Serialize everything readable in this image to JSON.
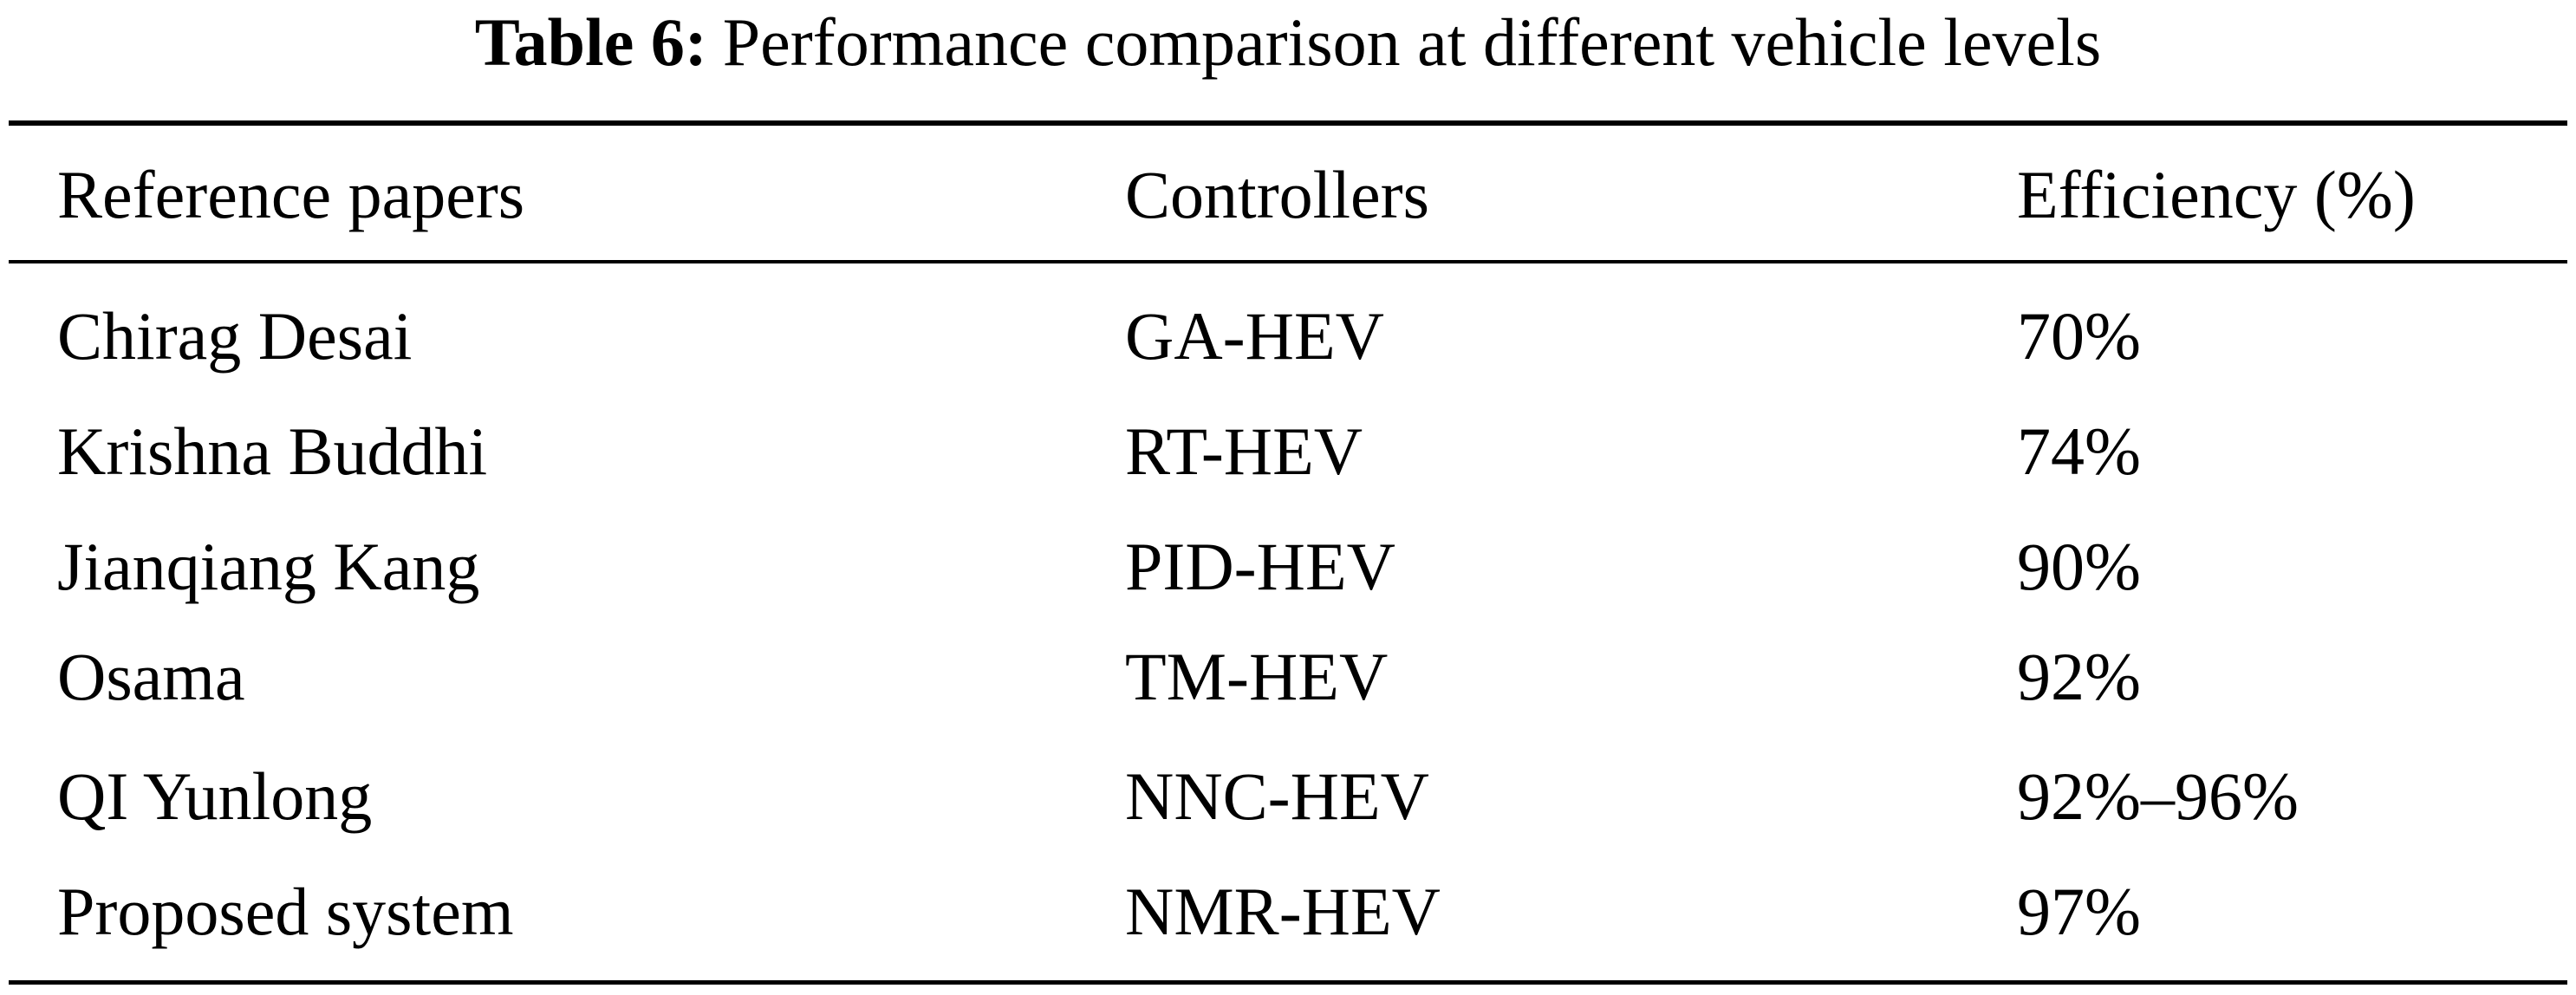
{
  "table": {
    "label": "Table 6:",
    "caption": "Performance comparison at different vehicle levels",
    "headers": [
      "Reference papers",
      "Controllers",
      "Efficiency (%)"
    ],
    "rows": [
      [
        "Chirag Desai",
        "GA-HEV",
        "70%"
      ],
      [
        "Krishna Buddhi",
        "RT-HEV",
        "74%"
      ],
      [
        "Jianqiang Kang",
        "PID-HEV",
        "90%"
      ],
      [
        "Osama",
        "TM-HEV",
        "92%"
      ],
      [
        "QI Yunlong",
        "NNC-HEV",
        "92%–96%"
      ],
      [
        "Proposed system",
        "NMR-HEV",
        "97%"
      ]
    ]
  }
}
